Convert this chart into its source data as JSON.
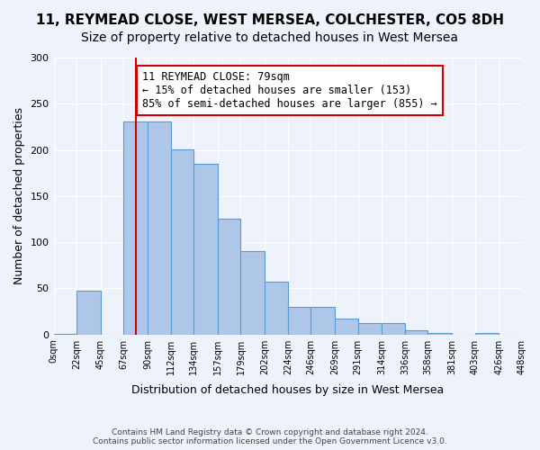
{
  "title1": "11, REYMEAD CLOSE, WEST MERSEA, COLCHESTER, CO5 8DH",
  "title2": "Size of property relative to detached houses in West Mersea",
  "xlabel": "Distribution of detached houses by size in West Mersea",
  "ylabel": "Number of detached properties",
  "footer1": "Contains HM Land Registry data © Crown copyright and database right 2024.",
  "footer2": "Contains public sector information licensed under the Open Government Licence v3.0.",
  "bar_edges": [
    0,
    22,
    45,
    67,
    90,
    112,
    134,
    157,
    179,
    202,
    224,
    246,
    269,
    291,
    314,
    336,
    358,
    381,
    403,
    426,
    448
  ],
  "bar_heights": [
    1,
    47,
    0,
    231,
    231,
    201,
    185,
    125,
    90,
    57,
    30,
    30,
    17,
    12,
    12,
    5,
    2,
    0,
    2,
    0
  ],
  "bar_color": "#aec6e8",
  "bar_edge_color": "#5a9bd5",
  "bg_color": "#eef2fa",
  "grid_color": "#ffffff",
  "vline_x": 79,
  "vline_color": "#cc0000",
  "annotation_text": "11 REYMEAD CLOSE: 79sqm\n← 15% of detached houses are smaller (153)\n85% of semi-detached houses are larger (855) →",
  "annotation_box_color": "#ffffff",
  "annotation_box_edge": "#cc0000",
  "ylim": [
    0,
    300
  ],
  "yticks": [
    0,
    50,
    100,
    150,
    200,
    250,
    300
  ],
  "title1_fontsize": 11,
  "title2_fontsize": 10,
  "xlabel_fontsize": 9,
  "ylabel_fontsize": 9,
  "annotation_fontsize": 8.5
}
